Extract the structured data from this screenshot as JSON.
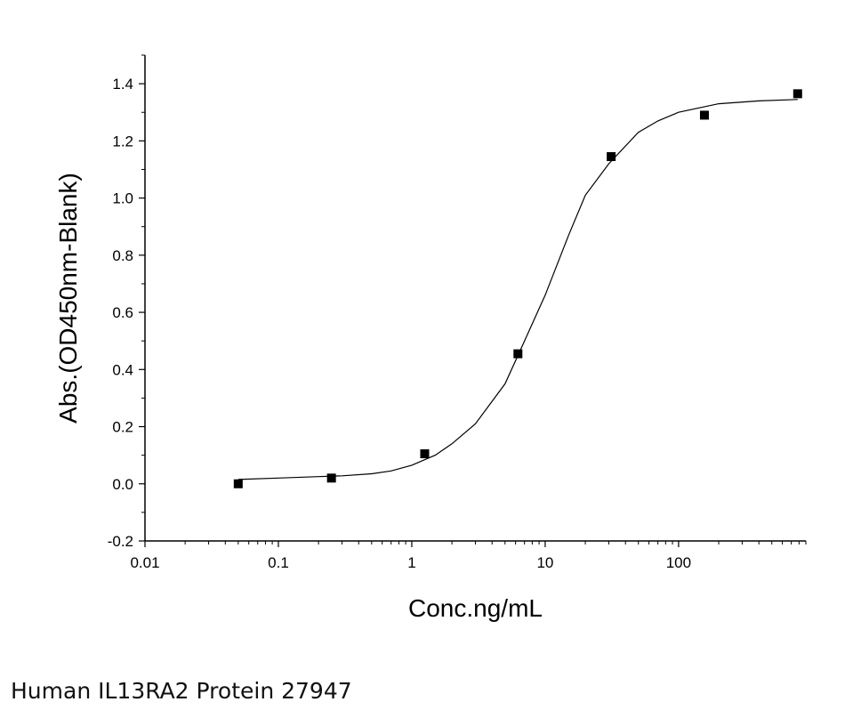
{
  "chart_data": {
    "type": "scatter",
    "title": "",
    "xlabel": "Conc.ng/mL",
    "ylabel": "Abs.(OD450nm-Blank)",
    "x_scale": "log",
    "xlim": [
      0.01,
      900
    ],
    "ylim": [
      -0.2,
      1.5
    ],
    "x_ticks": [
      {
        "value": 0.01,
        "label": "0.01"
      },
      {
        "value": 0.1,
        "label": "0.1"
      },
      {
        "value": 1,
        "label": "1"
      },
      {
        "value": 10,
        "label": "10"
      },
      {
        "value": 100,
        "label": "100"
      }
    ],
    "y_ticks": [
      {
        "value": -0.2,
        "label": "-0.2"
      },
      {
        "value": 0.0,
        "label": "0.0"
      },
      {
        "value": 0.2,
        "label": "0.2"
      },
      {
        "value": 0.4,
        "label": "0.4"
      },
      {
        "value": 0.6,
        "label": "0.6"
      },
      {
        "value": 0.8,
        "label": "0.8"
      },
      {
        "value": 1.0,
        "label": "1.0"
      },
      {
        "value": 1.2,
        "label": "1.2"
      },
      {
        "value": 1.4,
        "label": "1.4"
      }
    ],
    "grid": false,
    "legend": "none",
    "points": {
      "x": [
        0.05,
        0.25,
        1.25,
        6.25,
        31.25,
        156.25,
        781.25
      ],
      "y": [
        0.0,
        0.02,
        0.105,
        0.455,
        1.145,
        1.29,
        1.365
      ]
    },
    "curve": {
      "x": [
        0.05,
        0.1,
        0.2,
        0.3,
        0.5,
        0.7,
        1,
        1.5,
        2,
        3,
        5,
        7,
        10,
        15,
        20,
        30,
        50,
        70,
        100,
        200,
        400,
        781.25
      ],
      "y": [
        0.015,
        0.02,
        0.025,
        0.028,
        0.035,
        0.045,
        0.065,
        0.1,
        0.14,
        0.21,
        0.35,
        0.5,
        0.66,
        0.87,
        1.01,
        1.12,
        1.23,
        1.27,
        1.3,
        1.33,
        1.34,
        1.345
      ]
    },
    "colors": {
      "marker": "#000000",
      "line": "#000000"
    }
  },
  "caption": "Human IL13RA2 Protein 27947"
}
